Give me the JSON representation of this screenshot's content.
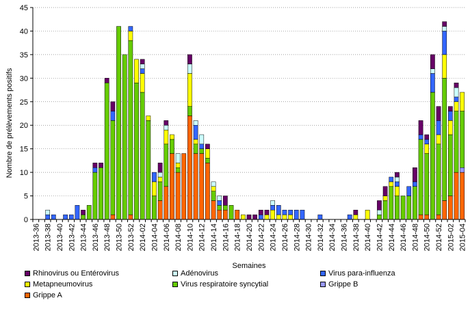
{
  "chart_data": {
    "type": "bar",
    "stacked": true,
    "title": "",
    "xlabel": "Semaines",
    "ylabel": "Nombre de prélèvements positifs",
    "ylim": [
      0,
      45
    ],
    "yticks": [
      0,
      5,
      10,
      15,
      20,
      25,
      30,
      35,
      40,
      45
    ],
    "grid": "horizontal dotted",
    "legend_position": "bottom",
    "categories": [
      "2013-36",
      "2013-37",
      "2013-38",
      "2013-39",
      "2013-40",
      "2013-41",
      "2013-42",
      "2013-43",
      "2013-44",
      "2013-45",
      "2013-46",
      "2013-47",
      "2013-48",
      "2013-49",
      "2013-50",
      "2013-51",
      "2013-52",
      "2014-01",
      "2014-02",
      "2014-03",
      "2014-04",
      "2014-05",
      "2014-06",
      "2014-07",
      "2014-08",
      "2014-09",
      "2014-10",
      "2014-11",
      "2014-12",
      "2014-13",
      "2014-14",
      "2014-15",
      "2014-16",
      "2014-17",
      "2014-18",
      "2014-19",
      "2014-20",
      "2014-21",
      "2014-22",
      "2014-23",
      "2014-24",
      "2014-25",
      "2014-26",
      "2014-27",
      "2014-28",
      "2014-29",
      "2014-30",
      "2014-31",
      "2014-32",
      "2014-33",
      "2014-34",
      "2014-35",
      "2014-36",
      "2014-37",
      "2014-38",
      "2014-39",
      "2014-40",
      "2014-41",
      "2014-42",
      "2014-43",
      "2014-44",
      "2014-45",
      "2014-46",
      "2014-47",
      "2014-48",
      "2014-49",
      "2014-50",
      "2014-51",
      "2014-52",
      "2015-01",
      "2015-02",
      "2015-03",
      "2015-04"
    ],
    "tick_labels": [
      "2013-36",
      "2013-38",
      "2013-40",
      "2013-42",
      "2013-44",
      "2013-46",
      "2013-48",
      "2013-50",
      "2013-52",
      "2014-02",
      "2014-04",
      "2014-06",
      "2014-08",
      "2014-10",
      "2014-12",
      "2014-14",
      "2014-16",
      "2014-18",
      "2014-20",
      "2014-22",
      "2014-24",
      "2014-26",
      "2014-28",
      "2014-30",
      "2014-32",
      "2014-34",
      "2014-36",
      "2014-38",
      "2014-40",
      "2014-42",
      "2014-44",
      "2014-46",
      "2014-48",
      "2014-50",
      "2014-52",
      "2015-02",
      "2015-04"
    ],
    "series": [
      {
        "name": "Grippe A",
        "color": "#ff6600",
        "values": [
          0,
          0,
          0,
          0,
          0,
          0,
          0,
          0,
          0,
          0,
          0,
          0,
          0,
          1,
          0,
          0,
          1,
          0,
          0,
          0,
          0,
          4,
          7,
          14,
          10,
          14,
          22,
          14,
          14,
          12,
          4,
          2,
          2,
          0,
          2,
          0,
          0,
          0,
          0,
          0,
          0,
          0,
          0,
          0,
          0,
          0,
          0,
          0,
          0,
          0,
          0,
          0,
          0,
          0,
          0,
          0,
          0,
          0,
          0,
          0,
          0,
          0,
          0,
          0,
          0,
          1,
          1,
          0,
          1,
          4,
          5,
          10,
          10
        ]
      },
      {
        "name": "Grippe B",
        "color": "#9999ff",
        "values": [
          0,
          0,
          0,
          0,
          0,
          0,
          0,
          0,
          0,
          0,
          0,
          0,
          0,
          0,
          0,
          0,
          0,
          0,
          0,
          0,
          0,
          0,
          0,
          0,
          0,
          0,
          0,
          0,
          0,
          0,
          0,
          0,
          0,
          0,
          0,
          0,
          0,
          0,
          0,
          0,
          0,
          0,
          0,
          0,
          0,
          0,
          0,
          0,
          0,
          0,
          0,
          0,
          0,
          0,
          0,
          0,
          0,
          0,
          0,
          0,
          0,
          0,
          0,
          0,
          0,
          0,
          0,
          0,
          0,
          0,
          0,
          0,
          1
        ]
      },
      {
        "name": "Virus respiratoire syncytial",
        "color": "#66cc00",
        "values": [
          0,
          0,
          0,
          0,
          0,
          0,
          0,
          0,
          1,
          3,
          10,
          11,
          29,
          20,
          41,
          35,
          37,
          29,
          27,
          21,
          5,
          4,
          9,
          3,
          1,
          0,
          2,
          2,
          1,
          1,
          2,
          1,
          1,
          3,
          0,
          0,
          0,
          0,
          0,
          0,
          0,
          0,
          0,
          0,
          0,
          0,
          0,
          0,
          0,
          0,
          0,
          0,
          0,
          0,
          0,
          0,
          0,
          0,
          1,
          4,
          7,
          5,
          5,
          5,
          7,
          16,
          13,
          27,
          15,
          26,
          13,
          13,
          12
        ]
      },
      {
        "name": "Metapneumovirus",
        "color": "#ffff00",
        "values": [
          0,
          0,
          0,
          0,
          0,
          0,
          0,
          0,
          0,
          0,
          0,
          0,
          0,
          0,
          0,
          0,
          2,
          5,
          4,
          1,
          3,
          1,
          3,
          1,
          1,
          0,
          7,
          1,
          0,
          2,
          1,
          0,
          0,
          0,
          0,
          1,
          0,
          0,
          0,
          1,
          2,
          1,
          1,
          1,
          0,
          0,
          0,
          0,
          0,
          0,
          0,
          0,
          0,
          0,
          1,
          0,
          2,
          0,
          0,
          1,
          1,
          2,
          0,
          0,
          0,
          0,
          2,
          0,
          2,
          5,
          3,
          2,
          4
        ]
      },
      {
        "name": "Virus para-influenza",
        "color": "#3366ff",
        "values": [
          0,
          0,
          1,
          1,
          0,
          1,
          1,
          3,
          0,
          0,
          1,
          0,
          0,
          2,
          0,
          0,
          1,
          0,
          1,
          0,
          2,
          0,
          0,
          0,
          0,
          0,
          0,
          3,
          1,
          0,
          0,
          1,
          0,
          0,
          0,
          0,
          0,
          0,
          1,
          0,
          1,
          2,
          1,
          1,
          2,
          2,
          0,
          0,
          1,
          0,
          0,
          0,
          0,
          1,
          0,
          0,
          0,
          0,
          0,
          0,
          1,
          1,
          0,
          2,
          1,
          1,
          1,
          4,
          3,
          5,
          2,
          1,
          0
        ]
      },
      {
        "name": "Adénovirus",
        "color": "#ccffff",
        "values": [
          0,
          0,
          1,
          0,
          0,
          0,
          0,
          0,
          0,
          0,
          0,
          0,
          0,
          0,
          0,
          0,
          0,
          0,
          1,
          0,
          0,
          1,
          1,
          0,
          2,
          0,
          2,
          1,
          2,
          0,
          1,
          1,
          0,
          0,
          0,
          0,
          0,
          0,
          0,
          0,
          1,
          0,
          0,
          0,
          0,
          0,
          0,
          0,
          0,
          0,
          0,
          0,
          0,
          0,
          0,
          0,
          0,
          0,
          1,
          0,
          0,
          1,
          0,
          0,
          0,
          0,
          0,
          1,
          0,
          1,
          0,
          2,
          0
        ]
      },
      {
        "name": "Rhinovirus ou Entérovirus",
        "color": "#660066",
        "values": [
          0,
          0,
          0,
          0,
          0,
          0,
          0,
          0,
          1,
          0,
          1,
          1,
          1,
          2,
          0,
          0,
          0,
          0,
          1,
          0,
          0,
          2,
          1,
          0,
          0,
          0,
          2,
          0,
          0,
          1,
          0,
          0,
          2,
          0,
          0,
          0,
          1,
          1,
          1,
          1,
          0,
          0,
          0,
          0,
          0,
          0,
          0,
          0,
          0,
          0,
          0,
          0,
          0,
          0,
          1,
          0,
          0,
          0,
          2,
          2,
          0,
          1,
          0,
          0,
          3,
          3,
          1,
          3,
          3,
          1,
          1,
          1,
          0
        ]
      }
    ],
    "legend_order": [
      "Rhinovirus ou Entérovirus",
      "Adénovirus",
      "Virus para-influenza",
      "Metapneumovirus",
      "Virus respiratoire syncytial",
      "Grippe B",
      "Grippe A"
    ]
  }
}
